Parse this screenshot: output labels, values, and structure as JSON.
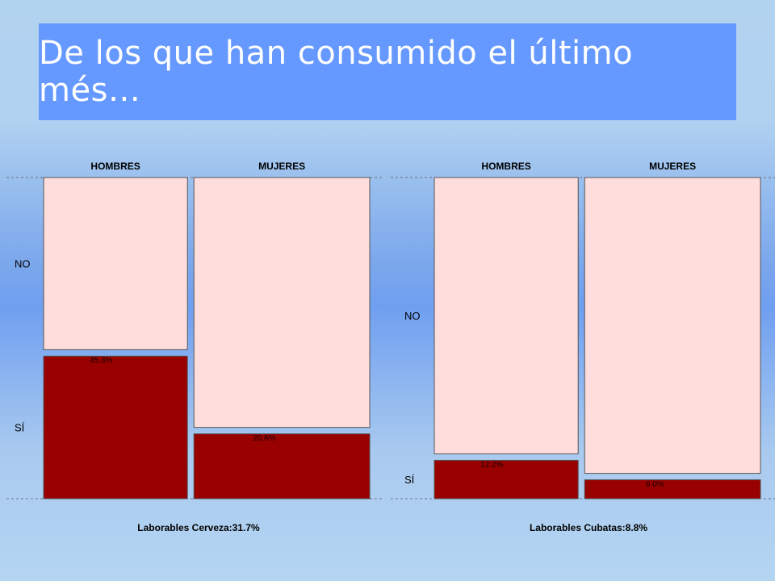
{
  "slide": {
    "title": "De los que han consumido el último més…"
  },
  "colors": {
    "title_bg": "#6699ff",
    "no_fill": "#ffdddd",
    "si_fill": "#990000",
    "outline": "#555555"
  },
  "chart_data": [
    {
      "type": "mosaic",
      "columns": [
        "HOMBRES",
        "MUJERES"
      ],
      "column_widths": [
        0.45,
        0.55
      ],
      "rows": [
        "NO",
        "SÍ"
      ],
      "si_pct": [
        45.3,
        20.6
      ],
      "labels": [
        "45.3%",
        "20.6%"
      ],
      "caption": "Laborables Cerveza:31.7%"
    },
    {
      "type": "mosaic",
      "columns": [
        "HOMBRES",
        "MUJERES"
      ],
      "column_widths": [
        0.45,
        0.55
      ],
      "rows": [
        "NO",
        "SÍ"
      ],
      "si_pct": [
        12.2,
        6.0
      ],
      "labels": [
        "12.2%",
        "6.0%"
      ],
      "caption": "Laborables Cubatas:8.8%"
    }
  ]
}
